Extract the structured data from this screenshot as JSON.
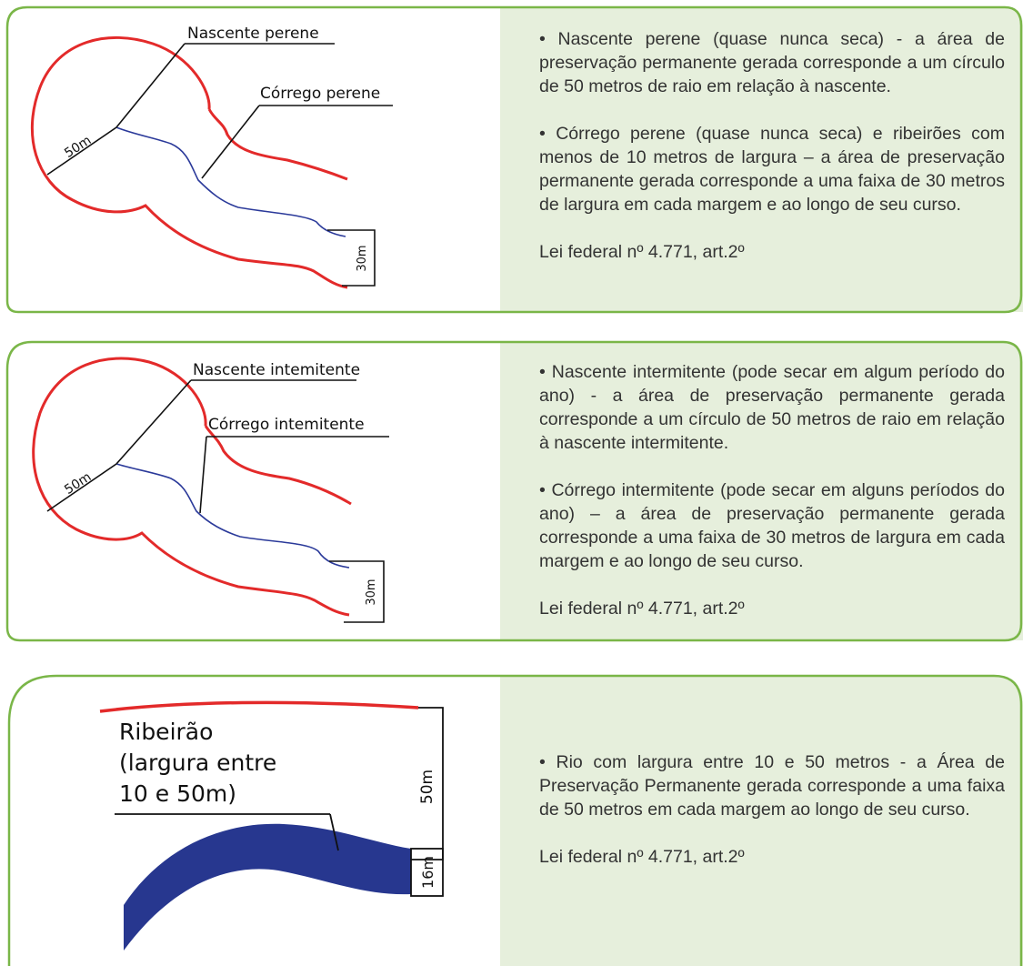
{
  "colors": {
    "border": "#7ab648",
    "text_bg": "#e6efdc",
    "zone_line": "#e32a2a",
    "stream": "#2b3a9a",
    "river": "#27378f",
    "text": "#333333"
  },
  "panels": [
    {
      "labels": {
        "spring": "Nascente perene",
        "stream": "Córrego perene",
        "radius": "50m",
        "width": "30m"
      },
      "paragraphs": [
        "• Nascente perene (quase nunca seca) - a área de preservação permanente gerada corresponde a um círculo de 50 metros de raio em relação à nascente.",
        "• Córrego perene (quase nunca seca) e ribeirões com menos de 10 metros de largura – a área de preservação permanente gerada corresponde a uma faixa de 30 metros de largura em cada margem e ao longo de seu curso."
      ],
      "law": "Lei federal nº 4.771, art.2º"
    },
    {
      "labels": {
        "spring": "Nascente intemitente",
        "stream": "Córrego intemitente",
        "radius": "50m",
        "width": "30m"
      },
      "paragraphs": [
        "• Nascente intermitente (pode secar em algum período do ano) - a área de preservação permanente gerada corresponde a um círculo de 50 metros de raio em relação à nascente intermitente.",
        "• Córrego intermitente (pode secar em alguns períodos do ano) – a área de preservação permanente gerada corresponde a uma faixa de 30 metros de largura em cada margem e ao longo de seu curso."
      ],
      "law": "Lei federal nº 4.771, art.2º"
    },
    {
      "labels": {
        "river_line1": "Ribeirão",
        "river_line2": "(largura entre",
        "river_line3": "10 e 50m)",
        "buffer": "50m",
        "channel": "16m"
      },
      "paragraphs": [
        "• Rio com largura entre 10 e 50 metros - a Área de Preservação Permanente gerada corresponde a uma faixa de 50 metros em cada margem ao longo de seu curso."
      ],
      "law": "Lei federal nº 4.771, art.2º"
    }
  ]
}
